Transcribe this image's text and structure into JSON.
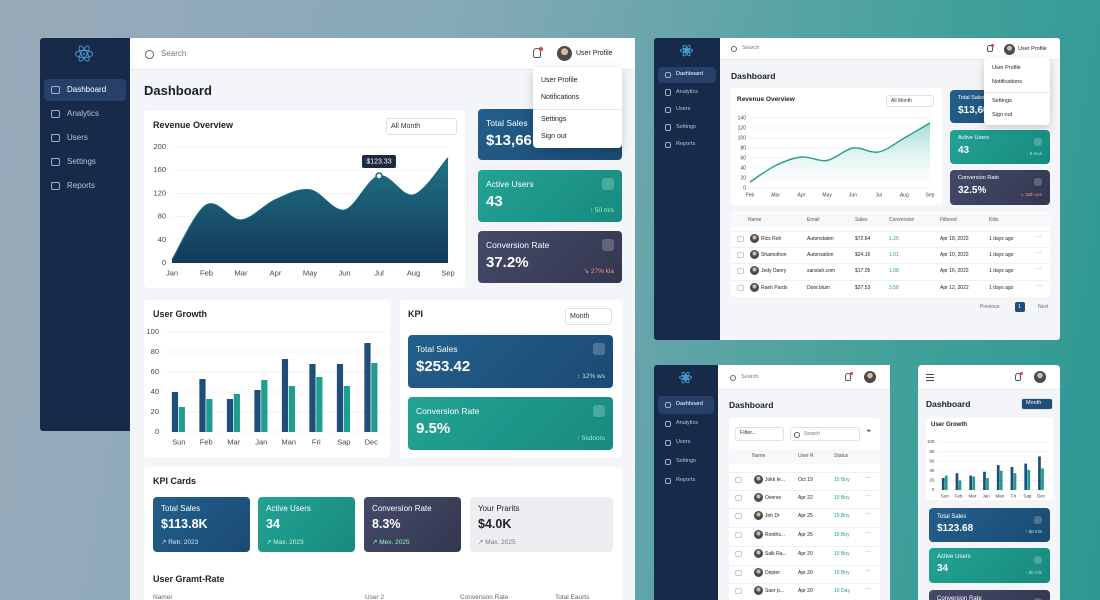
{
  "screens": {
    "main": {
      "sidebar": [
        "Dashboard",
        "Analytics",
        "Users",
        "Settings",
        "Reports"
      ],
      "search": "Search",
      "profile": "User Profile",
      "menu": [
        "User Profile",
        "Notifications",
        "Settings",
        "Sign out"
      ],
      "title": "Dashboard",
      "revenue": {
        "type": "area",
        "title": "Revenue Overview",
        "filter": "All Month",
        "categories": [
          "Jan",
          "Feb",
          "Mar",
          "Apr",
          "May",
          "Jun",
          "Jul",
          "Aug",
          "Sep"
        ],
        "values": [
          5,
          100,
          74,
          109,
          126,
          91,
          150,
          117,
          181
        ],
        "ylim": [
          0,
          200
        ],
        "yticks": [
          0,
          40,
          80,
          120,
          160,
          200
        ],
        "tooltip": "$123.33",
        "color": "#1a5f7c"
      },
      "stats": [
        {
          "label": "Total Sales",
          "value": "$13,66"
        },
        {
          "label": "Active Users",
          "value": "43",
          "note": "↑ 50 mis"
        },
        {
          "label": "Conversion Rate",
          "value": "37.2%",
          "note": "↘ 27% kla"
        }
      ],
      "growth": {
        "type": "bar",
        "title": "User Growth",
        "categories": [
          "Sun",
          "Feb",
          "Mar",
          "Jan",
          "Man",
          "Fri",
          "Sap",
          "Dec"
        ],
        "series": [
          {
            "color": "#1e4e79",
            "values": [
              40,
              53,
              33,
              42,
              73,
              68,
              68,
              89
            ]
          },
          {
            "color": "#1f9d8f",
            "values": [
              25,
              33,
              38,
              52,
              46,
              55,
              46,
              69
            ]
          }
        ],
        "ylim": [
          0,
          100
        ],
        "yticks": [
          0,
          20,
          40,
          60,
          80,
          100
        ]
      },
      "kpi": {
        "title": "KPI",
        "filter": "Month",
        "cards": [
          {
            "label": "Total Sales",
            "value": "$253.42",
            "note": "↑ 12% ws"
          },
          {
            "label": "Conversion Rate",
            "value": "9.5%",
            "note": "↑ 5sdoors"
          }
        ]
      },
      "kpi_cards": {
        "title": "KPI Cards",
        "cards": [
          {
            "label": "Total Sales",
            "value": "$113.8K",
            "note": "↗ Retr. 2023"
          },
          {
            "label": "Active Users",
            "value": "34",
            "note": "↗ Max. 2023"
          },
          {
            "label": "Conversion Rate",
            "value": "8.3%",
            "note": "↗ Mex. 2025"
          },
          {
            "label": "Your Prarits",
            "value": "$4.0K",
            "note": "↗ Max. 2025"
          }
        ]
      },
      "table": {
        "title": "User Gramt-Rate",
        "columns": [
          "Namer",
          "User 2",
          "Conversion Rate",
          "Total Eaurts"
        ]
      }
    },
    "desktop": {
      "sidebar": [
        "Dashboard",
        "Analytics",
        "Users",
        "Settings",
        "Reports"
      ],
      "search": "Search",
      "profile": "User Profile",
      "menu": [
        "User Profile",
        "Notifications",
        "Settings",
        "Sign out"
      ],
      "title": "Dashboard",
      "revenue": {
        "type": "area",
        "title": "Revenue Overview",
        "filter": "All Month",
        "categories": [
          "Feb",
          "Mar",
          "Apr",
          "May",
          "Jun",
          "Jul",
          "Aug",
          "Sep"
        ],
        "values": [
          12,
          45,
          62,
          55,
          80,
          72,
          100,
          130
        ],
        "ylim": [
          0,
          140
        ],
        "yticks": [
          0,
          20,
          40,
          60,
          80,
          100,
          120,
          140
        ],
        "color": "#2a9d8f"
      },
      "stats": [
        {
          "label": "Total Sales",
          "value": "$13,66"
        },
        {
          "label": "Active Users",
          "value": "43",
          "note": "↑ 8 mos"
        },
        {
          "label": "Conversion Rate",
          "value": "32.5%",
          "note": "↘ 15th ovs"
        }
      ],
      "table": {
        "columns": [
          "Name",
          "Email",
          "Sales",
          "Conversion",
          "Filtered",
          "Kilts"
        ],
        "rows": [
          [
            "Rics Roh",
            "Autonstaten",
            "$72.64",
            "1.25",
            "Apr 18, 2022",
            "1 days ago"
          ],
          [
            "Shamothon",
            "Autonsation",
            "$24.16",
            "1.01",
            "Apr 10, 2022",
            "1 days ago"
          ],
          [
            "Jedy Danry",
            "sansiah.com",
            "$17.05",
            "1.08",
            "Apr 16, 2022",
            "1 days ago"
          ],
          [
            "Raeh Pards",
            "Door.blum",
            "$27.53",
            "3.58",
            "Apr 12, 2022",
            "1 days ago"
          ]
        ]
      },
      "pagination": [
        "Previous",
        "1",
        "Next"
      ]
    },
    "tablet": {
      "sidebar": [
        "Dashboard",
        "Analytics",
        "Users",
        "Settings",
        "Reports"
      ],
      "search": "Search",
      "title": "Dashboard",
      "filter": "Filter...",
      "table_search": "Search",
      "table": {
        "columns": [
          "Name",
          "User R",
          "Status"
        ],
        "rows": [
          [
            "Jokk Ie...",
            "Oct 19",
            "15 Boy"
          ],
          [
            "Overse",
            "Apr 22",
            "15 Boy"
          ],
          [
            "Joh Dr",
            "Apr 25",
            "15 Boy"
          ],
          [
            "Rooths...",
            "Apr 25",
            "15 Boy"
          ],
          [
            "Salk Ra...",
            "Apr 20",
            "15 Boy"
          ],
          [
            "Depter",
            "Apr 20",
            "15 Boy"
          ],
          [
            "Saer p...",
            "Apr 20",
            "10 Day"
          ]
        ]
      }
    },
    "phone": {
      "title": "Dashboard",
      "filter": "Month",
      "growth": {
        "type": "bar",
        "title": "User Growth",
        "categories": [
          "Sun",
          "Feb",
          "Mar",
          "Jan",
          "Man",
          "Fri",
          "Sap",
          "Dec"
        ],
        "series": [
          {
            "color": "#1e4e79",
            "values": [
              25,
              35,
              30,
              38,
              52,
              48,
              55,
              70
            ]
          },
          {
            "color": "#1f9d8f",
            "values": [
              30,
              20,
              28,
              25,
              40,
              35,
              42,
              45
            ]
          }
        ],
        "ylim": [
          0,
          100
        ],
        "yticks": [
          0,
          20,
          40,
          60,
          80,
          100
        ]
      },
      "stats": [
        {
          "label": "Total Sales",
          "value": "$123.68",
          "note": "↑ $0 mls"
        },
        {
          "label": "Active Users",
          "value": "34",
          "note": "↑ $0 mls"
        },
        {
          "label": "Conversion Rate"
        }
      ]
    }
  }
}
